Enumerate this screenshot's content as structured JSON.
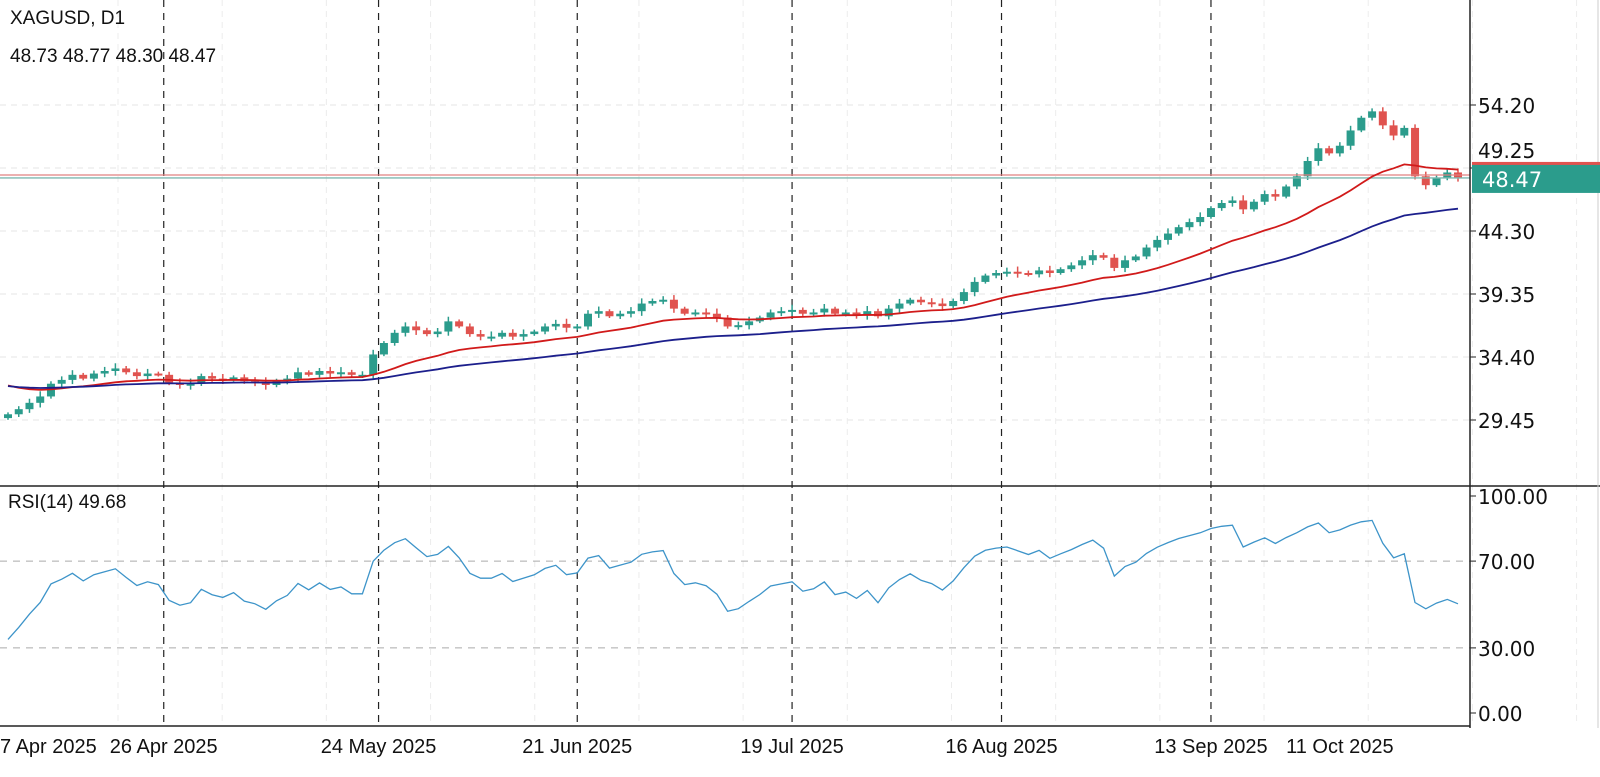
{
  "header": {
    "symbol": "XAGUSD, D1",
    "ohlc": "48.73 48.77 48.30 48.47"
  },
  "rsi_header": "RSI(14) 49.68",
  "price_tag": "48.47",
  "colors": {
    "up": "#2b9c8c",
    "down": "#e0534f",
    "ma_fast": "#d11a1a",
    "ma_slow": "#1c1f8c",
    "rsi": "#3d94c9",
    "tag": "#2b9c8c"
  },
  "chart_data": {
    "type": "candlestick",
    "title": "XAGUSD, D1",
    "price_axis": {
      "ticks": [
        "54.20",
        "49.25",
        "44.30",
        "39.35",
        "34.40",
        "29.45"
      ],
      "range": [
        25.5,
        56.5
      ]
    },
    "rsi_axis": {
      "ticks": [
        "100.00",
        "70.00",
        "30.00",
        "0.00"
      ],
      "range": [
        0,
        100
      ],
      "levels": [
        70,
        30
      ]
    },
    "x_labels": [
      {
        "label": "7 Apr 2025",
        "bar": 0,
        "line": false
      },
      {
        "label": "26 Apr 2025",
        "bar": 14.5,
        "line": true
      },
      {
        "label": "24 May 2025",
        "bar": 34.5,
        "line": true
      },
      {
        "label": "21 Jun 2025",
        "bar": 53,
        "line": true
      },
      {
        "label": "19 Jul 2025",
        "bar": 73,
        "line": true
      },
      {
        "label": "16 Aug 2025",
        "bar": 92.5,
        "line": true
      },
      {
        "label": "13 Sep 2025",
        "bar": 112,
        "line": true
      },
      {
        "label": "11 Oct 2025",
        "bar": 124,
        "line": false
      }
    ],
    "first_open": 29.6,
    "close": [
      29.9,
      30.3,
      30.8,
      31.3,
      32.3,
      32.6,
      33.0,
      32.7,
      33.1,
      33.3,
      33.5,
      33.2,
      32.9,
      33.1,
      33.0,
      32.4,
      32.2,
      32.3,
      32.9,
      32.7,
      32.6,
      32.8,
      32.5,
      32.4,
      32.2,
      32.5,
      32.7,
      33.2,
      33.0,
      33.3,
      33.1,
      33.2,
      33.0,
      33.0,
      34.6,
      35.5,
      36.3,
      36.8,
      36.5,
      36.2,
      36.4,
      37.2,
      36.8,
      36.2,
      36.0,
      36.0,
      36.3,
      36.0,
      36.2,
      36.4,
      36.8,
      37.0,
      36.7,
      36.8,
      37.8,
      38.0,
      37.6,
      37.8,
      38.0,
      38.6,
      38.8,
      38.9,
      38.2,
      37.8,
      37.9,
      37.8,
      37.5,
      36.8,
      36.9,
      37.2,
      37.5,
      37.9,
      38.0,
      38.1,
      37.8,
      37.9,
      38.2,
      37.8,
      37.9,
      37.7,
      38.0,
      37.6,
      38.2,
      38.6,
      38.9,
      38.7,
      38.6,
      38.4,
      38.8,
      39.5,
      40.3,
      40.8,
      41.0,
      41.1,
      41.0,
      40.9,
      41.2,
      41.0,
      41.3,
      41.6,
      42.0,
      42.4,
      42.2,
      41.4,
      42.0,
      42.3,
      43.0,
      43.6,
      44.1,
      44.6,
      45.0,
      45.4,
      46.1,
      46.5,
      46.7,
      46.0,
      46.6,
      47.2,
      47.0,
      47.8,
      48.6,
      49.8,
      50.8,
      50.4,
      51.0,
      52.2,
      53.2,
      53.7,
      52.6,
      51.8,
      52.4,
      48.6,
      47.9,
      48.5,
      48.9,
      48.47
    ],
    "last_price": 48.47,
    "ask_price": 48.7,
    "ma_fast": {
      "type": "EMA",
      "period": 20,
      "seed": 32.4
    },
    "ma_slow": {
      "type": "EMA",
      "period": 50,
      "seed": 32.2
    },
    "rsi": {
      "period": 14,
      "seed_avg_gain": 0.1,
      "seed_avg_loss": 0.24,
      "last": 49.68
    }
  }
}
